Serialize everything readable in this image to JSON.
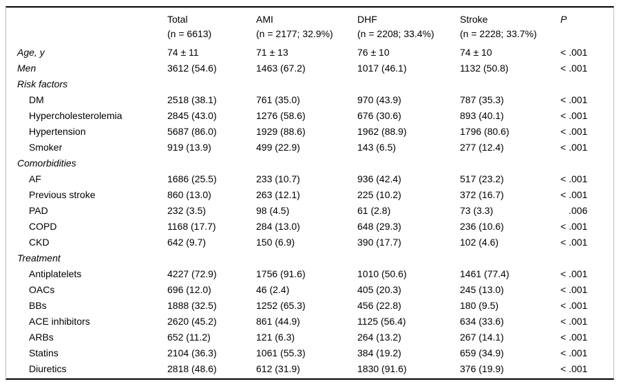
{
  "colors": {
    "background": "#ffffff",
    "text": "#000000",
    "heavy_rule": "#000000",
    "frame": "#bfbfbf"
  },
  "table": {
    "columns": [
      {
        "label": "",
        "sub": ""
      },
      {
        "label": "Total",
        "sub": "(n = 6613)"
      },
      {
        "label": "AMI",
        "sub": "(n = 2177; 32.9%)"
      },
      {
        "label": "DHF",
        "sub": "(n = 2208; 33.4%)"
      },
      {
        "label": "Stroke",
        "sub": "(n = 2228; 33.7%)"
      },
      {
        "label": "P",
        "sub": ""
      }
    ],
    "rows": [
      {
        "label": "Age, y",
        "style": "top",
        "values": [
          "74 ± 11",
          "71 ± 13",
          "76 ± 10",
          "74 ± 10",
          "< .001"
        ]
      },
      {
        "label": "Men",
        "style": "top",
        "values": [
          "3612 (54.6)",
          "1463 (67.2)",
          "1017 (46.1)",
          "1132 (50.8)",
          "< .001"
        ]
      },
      {
        "label": "Risk factors",
        "style": "section",
        "values": [
          "",
          "",
          "",
          "",
          ""
        ]
      },
      {
        "label": "DM",
        "style": "item",
        "values": [
          "2518 (38.1)",
          "761 (35.0)",
          "970 (43.9)",
          "787 (35.3)",
          "< .001"
        ]
      },
      {
        "label": "Hypercholesterolemia",
        "style": "item",
        "values": [
          "2845 (43.0)",
          "1276 (58.6)",
          "676 (30.6)",
          "893 (40.1)",
          "< .001"
        ]
      },
      {
        "label": "Hypertension",
        "style": "item",
        "values": [
          "5687 (86.0)",
          "1929 (88.6)",
          "1962 (88.9)",
          "1796 (80.6)",
          "< .001"
        ]
      },
      {
        "label": "Smoker",
        "style": "item",
        "values": [
          "919 (13.9)",
          "499 (22.9)",
          "143 (6.5)",
          "277 (12.4)",
          "< .001"
        ]
      },
      {
        "label": "Comorbidities",
        "style": "section",
        "values": [
          "",
          "",
          "",
          "",
          ""
        ]
      },
      {
        "label": "AF",
        "style": "item",
        "values": [
          "1686 (25.5)",
          "233 (10.7)",
          "936 (42.4)",
          "517 (23.2)",
          "< .001"
        ]
      },
      {
        "label": "Previous stroke",
        "style": "item",
        "values": [
          "860 (13.0)",
          "263 (12.1)",
          "225 (10.2)",
          "372 (16.7)",
          "< .001"
        ]
      },
      {
        "label": "PAD",
        "style": "item",
        "values": [
          "232 (3.5)",
          "98 (4.5)",
          "61 (2.8)",
          "73 (3.3)",
          ".006"
        ]
      },
      {
        "label": "COPD",
        "style": "item",
        "values": [
          "1168 (17.7)",
          "284 (13.0)",
          "648 (29.3)",
          "236 (10.6)",
          "< .001"
        ]
      },
      {
        "label": "CKD",
        "style": "item",
        "values": [
          "642 (9.7)",
          "150 (6.9)",
          "390 (17.7)",
          "102 (4.6)",
          "< .001"
        ]
      },
      {
        "label": "Treatment",
        "style": "section",
        "values": [
          "",
          "",
          "",
          "",
          ""
        ]
      },
      {
        "label": "Antiplatelets",
        "style": "item",
        "values": [
          "4227 (72.9)",
          "1756 (91.6)",
          "1010 (50.6)",
          "1461 (77.4)",
          "< .001"
        ]
      },
      {
        "label": "OACs",
        "style": "item",
        "values": [
          "696 (12.0)",
          "46 (2.4)",
          "405 (20.3)",
          "245 (13.0)",
          "< .001"
        ]
      },
      {
        "label": "BBs",
        "style": "item",
        "values": [
          "1888 (32.5)",
          "1252 (65.3)",
          "456 (22.8)",
          "180 (9.5)",
          "< .001"
        ]
      },
      {
        "label": "ACE inhibitors",
        "style": "item",
        "values": [
          "2620 (45.2)",
          "861 (44.9)",
          "1125 (56.4)",
          "634 (33.6)",
          "< .001"
        ]
      },
      {
        "label": "ARBs",
        "style": "item",
        "values": [
          "652 (11.2)",
          "121 (6.3)",
          "264 (13.2)",
          "267 (14.1)",
          "< .001"
        ]
      },
      {
        "label": "Statins",
        "style": "item",
        "values": [
          "2104 (36.3)",
          "1061 (55.3)",
          "384 (19.2)",
          "659 (34.9)",
          "< .001"
        ]
      },
      {
        "label": "Diuretics",
        "style": "item",
        "values": [
          "2818 (48.6)",
          "612 (31.9)",
          "1830 (91.6)",
          "376 (19.9)",
          "< .001"
        ]
      }
    ]
  }
}
